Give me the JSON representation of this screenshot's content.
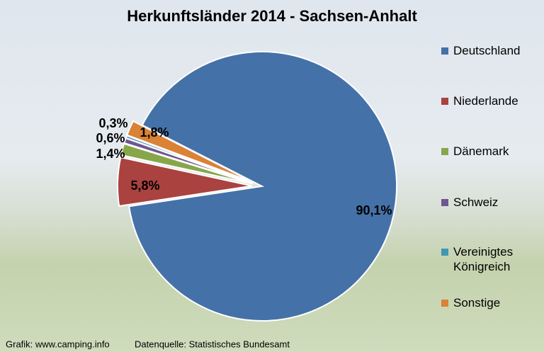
{
  "chart_data": {
    "type": "pie",
    "title": "Herkunftsländer 2014 - Sachsen-Anhalt",
    "categories": [
      "Deutschland",
      "Niederlande",
      "Dänemark",
      "Schweiz",
      "Vereinigtes Königreich",
      "Sonstige"
    ],
    "values": [
      90.1,
      5.8,
      1.4,
      0.6,
      0.3,
      1.8
    ],
    "value_labels": [
      "90,1%",
      "5,8%",
      "1,4%",
      "0,6%",
      "0,3%",
      "1,8%"
    ],
    "colors": [
      "#4471a8",
      "#aa4240",
      "#87a64a",
      "#6f5592",
      "#3f98b0",
      "#da8236"
    ],
    "legend": "right",
    "credits": [
      "Grafik: www.camping.info",
      "Datenquelle: Statistisches Bundesamt"
    ]
  }
}
